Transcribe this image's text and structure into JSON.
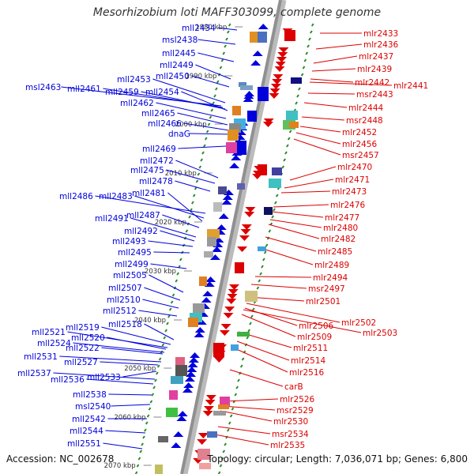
{
  "title": "Mesorhizobium loti MAFF303099, complete genome",
  "footer": {
    "accession": "Accession: NC_002678",
    "summary": "Topology: circular; Length: 7,036,071 bp; Genes: 6,800"
  },
  "colors": {
    "minus_strand": "#0000dd",
    "plus_strand": "#dd0000",
    "backbone": "#909090",
    "tick": "#2a8a2a"
  },
  "kbp_marks": [
    "1980 kbp",
    "1990 kbp",
    "2000 kbp",
    "2010 kbp",
    "2020 kbp",
    "2030 kbp",
    "2040 kbp",
    "2050 kbp",
    "2060 kbp",
    "2070 kbp"
  ],
  "left_genes": [
    "mll2434",
    "msl2438",
    "mll2445",
    "mll2449",
    "mll2450",
    "mll2453",
    "msl2463",
    "mll2461",
    "mll2459",
    "mll2454",
    "mll2462",
    "mll2465",
    "mll2466",
    "dnaG",
    "mll2469",
    "mll2472",
    "mll2475",
    "mll2478",
    "mll2486",
    "mll2483",
    "mll2481",
    "mll2487",
    "mll2491",
    "mll2492",
    "mll2493",
    "mll2495",
    "mll2499",
    "mll2505",
    "mll2507",
    "mll2510",
    "mll2512",
    "mll2518",
    "mll2519",
    "mll2521",
    "mll2520",
    "mll2524",
    "mll2522",
    "mll2531",
    "mll2527",
    "mll2533",
    "mll2537",
    "mll2536",
    "mll2538",
    "msl2540",
    "mll2542",
    "mll2544",
    "mll2551"
  ],
  "right_genes": [
    "mlr2433",
    "mlr2436",
    "mlr2437",
    "mlr2439",
    "mlr2442",
    "mlr2441",
    "msr2443",
    "mlr2444",
    "msr2448",
    "mlr2452",
    "mlr2456",
    "msr2457",
    "mlr2470",
    "mlr2471",
    "mlr2473",
    "mlr2476",
    "mlr2477",
    "mlr2480",
    "mlr2482",
    "mlr2485",
    "mlr2489",
    "mlr2494",
    "msr2497",
    "mlr2501",
    "mlr2502",
    "mlr2506",
    "mlr2503",
    "mlr2509",
    "mlr2511",
    "mlr2514",
    "mlr2516",
    "carB",
    "mlr2526",
    "msr2529",
    "mlr2530",
    "msr2534",
    "mlr2535"
  ]
}
